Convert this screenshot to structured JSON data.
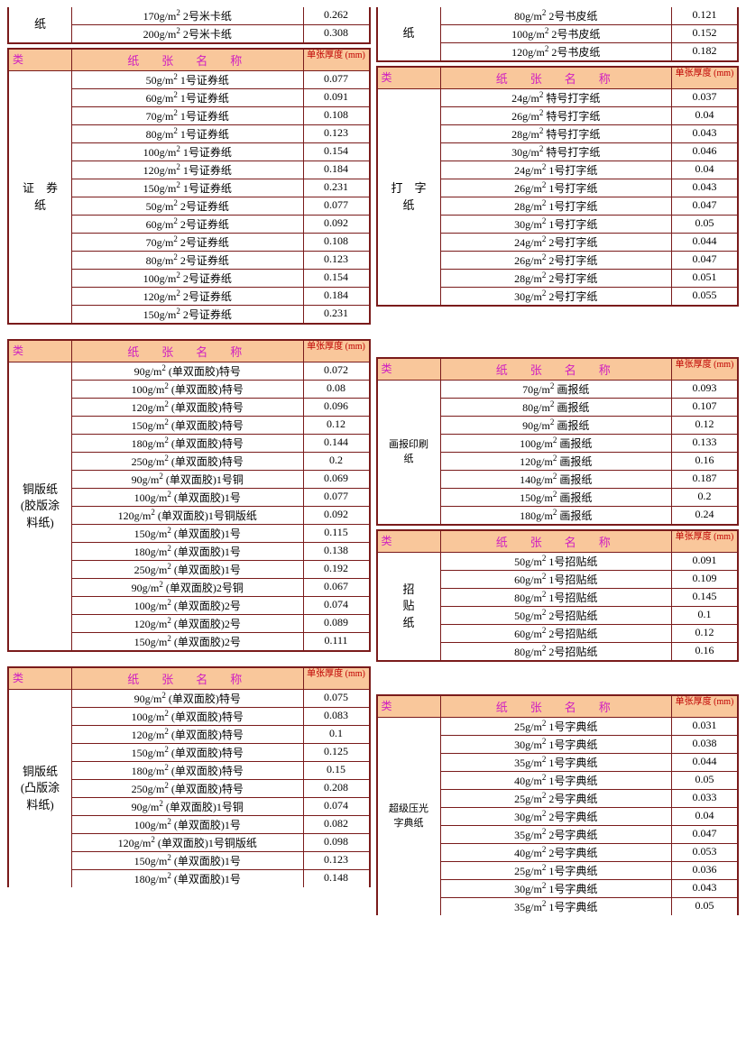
{
  "headers": {
    "category": "类",
    "name": "纸　张　名　称",
    "thickness": "单张厚度 (mm)"
  },
  "left_top": {
    "category": "纸",
    "rows": [
      {
        "name": "170g/m² 2号米卡纸",
        "val": "0.262"
      },
      {
        "name": "200g/m² 2号米卡纸",
        "val": "0.308"
      }
    ]
  },
  "left_sec1": {
    "category": "证　券\n纸",
    "rows": [
      {
        "name": "50g/m² 1号证券纸",
        "val": "0.077"
      },
      {
        "name": "60g/m² 1号证券纸",
        "val": "0.091"
      },
      {
        "name": "70g/m² 1号证券纸",
        "val": "0.108"
      },
      {
        "name": "80g/m² 1号证券纸",
        "val": "0.123"
      },
      {
        "name": "100g/m² 1号证券纸",
        "val": "0.154"
      },
      {
        "name": "120g/m² 1号证券纸",
        "val": "0.184"
      },
      {
        "name": "150g/m² 1号证券纸",
        "val": "0.231"
      },
      {
        "name": "50g/m² 2号证券纸",
        "val": "0.077"
      },
      {
        "name": "60g/m² 2号证券纸",
        "val": "0.092"
      },
      {
        "name": "70g/m² 2号证券纸",
        "val": "0.108"
      },
      {
        "name": "80g/m² 2号证券纸",
        "val": "0.123"
      },
      {
        "name": "100g/m² 2号证券纸",
        "val": "0.154"
      },
      {
        "name": "120g/m² 2号证券纸",
        "val": "0.184"
      },
      {
        "name": "150g/m² 2号证券纸",
        "val": "0.231"
      }
    ]
  },
  "left_sec2": {
    "category": "铜版纸\n(胶版涂\n料纸)",
    "rows": [
      {
        "name": "90g/m² (单双面胶)特号",
        "val": "0.072"
      },
      {
        "name": "100g/m² (单双面胶)特号",
        "val": "0.08"
      },
      {
        "name": "120g/m² (单双面胶)特号",
        "val": "0.096"
      },
      {
        "name": "150g/m² (单双面胶)特号",
        "val": "0.12"
      },
      {
        "name": "180g/m² (单双面胶)特号",
        "val": "0.144"
      },
      {
        "name": "250g/m² (单双面胶)特号",
        "val": "0.2"
      },
      {
        "name": "90g/m² (单双面胶)1号铜",
        "val": "0.069"
      },
      {
        "name": "100g/m² (单双面胶)1号",
        "val": "0.077"
      },
      {
        "name": "120g/m² (单双面胶)1号铜版纸",
        "val": "0.092"
      },
      {
        "name": "150g/m² (单双面胶)1号",
        "val": "0.115"
      },
      {
        "name": "180g/m² (单双面胶)1号",
        "val": "0.138"
      },
      {
        "name": "250g/m² (单双面胶)1号",
        "val": "0.192"
      },
      {
        "name": "90g/m² (单双面胶)2号铜",
        "val": "0.067"
      },
      {
        "name": "100g/m² (单双面胶)2号",
        "val": "0.074"
      },
      {
        "name": "120g/m² (单双面胶)2号",
        "val": "0.089"
      },
      {
        "name": "150g/m² (单双面胶)2号",
        "val": "0.111"
      }
    ]
  },
  "left_sec3": {
    "category": "铜版纸\n(凸版涂\n料纸)",
    "rows": [
      {
        "name": "90g/m² (单双面胶)特号",
        "val": "0.075"
      },
      {
        "name": "100g/m² (单双面胶)特号",
        "val": "0.083"
      },
      {
        "name": "120g/m² (单双面胶)特号",
        "val": "0.1"
      },
      {
        "name": "150g/m² (单双面胶)特号",
        "val": "0.125"
      },
      {
        "name": "180g/m² (单双面胶)特号",
        "val": "0.15"
      },
      {
        "name": "250g/m² (单双面胶)特号",
        "val": "0.208"
      },
      {
        "name": "90g/m² (单双面胶)1号铜",
        "val": "0.074"
      },
      {
        "name": "100g/m² (单双面胶)1号",
        "val": "0.082"
      },
      {
        "name": "120g/m² (单双面胶)1号铜版纸",
        "val": "0.098"
      },
      {
        "name": "150g/m² (单双面胶)1号",
        "val": "0.123"
      },
      {
        "name": "180g/m² (单双面胶)1号",
        "val": "0.148"
      }
    ]
  },
  "right_top": {
    "category": "纸",
    "rows": [
      {
        "name": "80g/m² 2号书皮纸",
        "val": "0.121"
      },
      {
        "name": "100g/m² 2号书皮纸",
        "val": "0.152"
      },
      {
        "name": "120g/m² 2号书皮纸",
        "val": "0.182"
      }
    ]
  },
  "right_sec1": {
    "category": "打　字\n纸",
    "rows": [
      {
        "name": "24g/m² 特号打字纸",
        "val": "0.037"
      },
      {
        "name": "26g/m² 特号打字纸",
        "val": "0.04"
      },
      {
        "name": "28g/m² 特号打字纸",
        "val": "0.043"
      },
      {
        "name": "30g/m² 特号打字纸",
        "val": "0.046"
      },
      {
        "name": "24g/m² 1号打字纸",
        "val": "0.04"
      },
      {
        "name": "26g/m² 1号打字纸",
        "val": "0.043"
      },
      {
        "name": "28g/m² 1号打字纸",
        "val": "0.047"
      },
      {
        "name": "30g/m² 1号打字纸",
        "val": "0.05"
      },
      {
        "name": "24g/m² 2号打字纸",
        "val": "0.044"
      },
      {
        "name": "26g/m² 2号打字纸",
        "val": "0.047"
      },
      {
        "name": "28g/m² 2号打字纸",
        "val": "0.051"
      },
      {
        "name": "30g/m² 2号打字纸",
        "val": "0.055"
      }
    ]
  },
  "right_sec2": {
    "category": "画报印刷\n纸",
    "rows": [
      {
        "name": "70g/m² 画报纸",
        "val": "0.093"
      },
      {
        "name": "80g/m² 画报纸",
        "val": "0.107"
      },
      {
        "name": "90g/m² 画报纸",
        "val": "0.12"
      },
      {
        "name": "100g/m² 画报纸",
        "val": "0.133"
      },
      {
        "name": "120g/m² 画报纸",
        "val": "0.16"
      },
      {
        "name": "140g/m² 画报纸",
        "val": "0.187"
      },
      {
        "name": "150g/m² 画报纸",
        "val": "0.2"
      },
      {
        "name": "180g/m² 画报纸",
        "val": "0.24"
      }
    ]
  },
  "right_sec3": {
    "category": "招\n贴\n纸",
    "rows": [
      {
        "name": "50g/m² 1号招贴纸",
        "val": "0.091"
      },
      {
        "name": "60g/m² 1号招贴纸",
        "val": "0.109"
      },
      {
        "name": "80g/m² 1号招贴纸",
        "val": "0.145"
      },
      {
        "name": "50g/m² 2号招贴纸",
        "val": "0.1"
      },
      {
        "name": "60g/m² 2号招贴纸",
        "val": "0.12"
      },
      {
        "name": "80g/m² 2号招贴纸",
        "val": "0.16"
      }
    ]
  },
  "right_sec4": {
    "category": "超级压光\n字典纸",
    "rows": [
      {
        "name": "25g/m² 1号字典纸",
        "val": "0.031"
      },
      {
        "name": "30g/m² 1号字典纸",
        "val": "0.038"
      },
      {
        "name": "35g/m² 1号字典纸",
        "val": "0.044"
      },
      {
        "name": "40g/m² 1号字典纸",
        "val": "0.05"
      },
      {
        "name": "25g/m² 2号字典纸",
        "val": "0.033"
      },
      {
        "name": "30g/m² 2号字典纸",
        "val": "0.04"
      },
      {
        "name": "35g/m² 2号字典纸",
        "val": "0.047"
      },
      {
        "name": "40g/m² 2号字典纸",
        "val": "0.053"
      },
      {
        "name": "25g/m² 1号字典纸",
        "val": "0.036"
      },
      {
        "name": "30g/m² 1号字典纸",
        "val": "0.043"
      },
      {
        "name": "35g/m² 1号字典纸",
        "val": "0.05"
      }
    ]
  }
}
